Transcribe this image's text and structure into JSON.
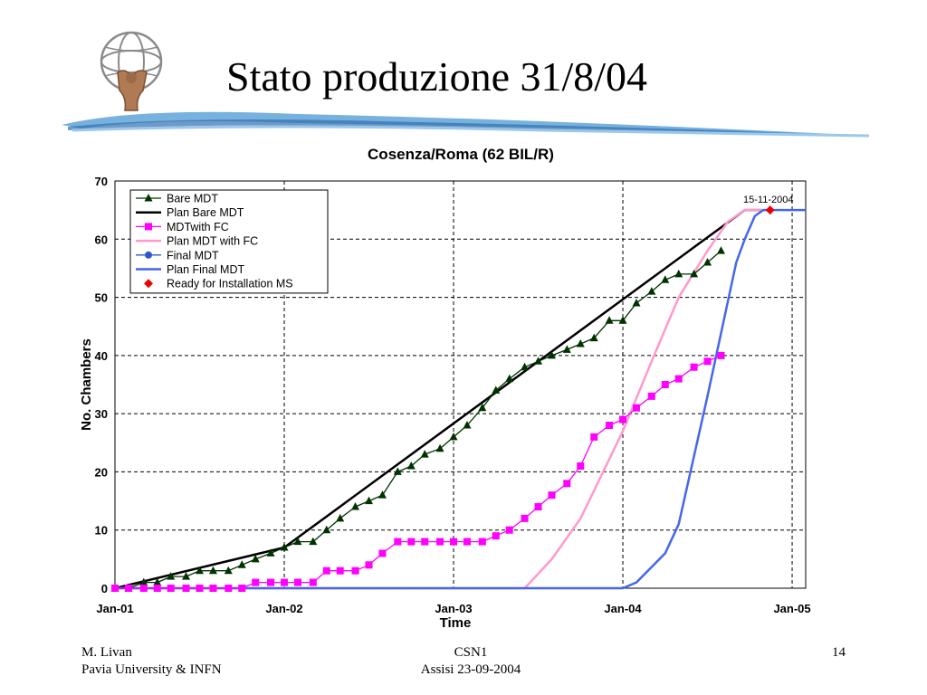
{
  "slide": {
    "title": "Stato produzione 31/8/04",
    "footer_left_line1": "M. Livan",
    "footer_left_line2": "Pavia University & INFN",
    "footer_center_line1": "CSN1",
    "footer_center_line2": "Assisi 23-09-2004",
    "page_number": "14"
  },
  "chart_data": {
    "type": "line",
    "title": "Cosenza/Roma (62 BIL/R)",
    "xlabel": "Time",
    "ylabel": "No. Chambers",
    "x_unit": "years (2001.0 = Jan-01)",
    "xlim": [
      2001.0,
      2005.08
    ],
    "ylim": [
      0,
      70
    ],
    "x_ticks": [
      {
        "value": 2001.0,
        "label": "Jan-01"
      },
      {
        "value": 2002.0,
        "label": "Jan-02"
      },
      {
        "value": 2003.0,
        "label": "Jan-03"
      },
      {
        "value": 2004.0,
        "label": "Jan-04"
      },
      {
        "value": 2005.0,
        "label": "Jan-05"
      }
    ],
    "y_ticks": [
      0,
      10,
      20,
      30,
      40,
      50,
      60,
      70
    ],
    "grid": true,
    "legend_position": "top-left",
    "annotation": {
      "text": "15-11-2004",
      "x": 2004.87,
      "y": 65
    },
    "series": [
      {
        "name": "Bare MDT",
        "color": "#003300",
        "marker": "triangle",
        "line": true,
        "points": [
          [
            2001.0,
            0
          ],
          [
            2001.08,
            0
          ],
          [
            2001.17,
            1
          ],
          [
            2001.25,
            1
          ],
          [
            2001.33,
            2
          ],
          [
            2001.42,
            2
          ],
          [
            2001.5,
            3
          ],
          [
            2001.58,
            3
          ],
          [
            2001.67,
            3
          ],
          [
            2001.75,
            4
          ],
          [
            2001.83,
            5
          ],
          [
            2001.92,
            6
          ],
          [
            2002.0,
            7
          ],
          [
            2002.08,
            8
          ],
          [
            2002.17,
            8
          ],
          [
            2002.25,
            10
          ],
          [
            2002.33,
            12
          ],
          [
            2002.42,
            14
          ],
          [
            2002.5,
            15
          ],
          [
            2002.58,
            16
          ],
          [
            2002.67,
            20
          ],
          [
            2002.75,
            21
          ],
          [
            2002.83,
            23
          ],
          [
            2002.92,
            24
          ],
          [
            2003.0,
            26
          ],
          [
            2003.08,
            28
          ],
          [
            2003.17,
            31
          ],
          [
            2003.25,
            34
          ],
          [
            2003.33,
            36
          ],
          [
            2003.42,
            38
          ],
          [
            2003.5,
            39
          ],
          [
            2003.58,
            40
          ],
          [
            2003.67,
            41
          ],
          [
            2003.75,
            42
          ],
          [
            2003.83,
            43
          ],
          [
            2003.92,
            46
          ],
          [
            2004.0,
            46
          ],
          [
            2004.08,
            49
          ],
          [
            2004.17,
            51
          ],
          [
            2004.25,
            53
          ],
          [
            2004.33,
            54
          ],
          [
            2004.42,
            54
          ],
          [
            2004.5,
            56
          ],
          [
            2004.58,
            58
          ]
        ]
      },
      {
        "name": "Plan Bare MDT",
        "color": "#000000",
        "marker": "none",
        "line": true,
        "points": [
          [
            2001.0,
            0
          ],
          [
            2002.0,
            7
          ],
          [
            2004.72,
            65
          ],
          [
            2004.82,
            65
          ]
        ]
      },
      {
        "name": "MDTwith FC",
        "color": "#ff00ff",
        "marker": "square",
        "line": true,
        "points": [
          [
            2001.0,
            0
          ],
          [
            2001.08,
            0
          ],
          [
            2001.17,
            0
          ],
          [
            2001.25,
            0
          ],
          [
            2001.33,
            0
          ],
          [
            2001.42,
            0
          ],
          [
            2001.5,
            0
          ],
          [
            2001.58,
            0
          ],
          [
            2001.67,
            0
          ],
          [
            2001.75,
            0
          ],
          [
            2001.83,
            1
          ],
          [
            2001.92,
            1
          ],
          [
            2002.0,
            1
          ],
          [
            2002.08,
            1
          ],
          [
            2002.17,
            1
          ],
          [
            2002.25,
            3
          ],
          [
            2002.33,
            3
          ],
          [
            2002.42,
            3
          ],
          [
            2002.5,
            4
          ],
          [
            2002.58,
            6
          ],
          [
            2002.67,
            8
          ],
          [
            2002.75,
            8
          ],
          [
            2002.83,
            8
          ],
          [
            2002.92,
            8
          ],
          [
            2003.0,
            8
          ],
          [
            2003.08,
            8
          ],
          [
            2003.17,
            8
          ],
          [
            2003.25,
            9
          ],
          [
            2003.33,
            10
          ],
          [
            2003.42,
            12
          ],
          [
            2003.5,
            14
          ],
          [
            2003.58,
            16
          ],
          [
            2003.67,
            18
          ],
          [
            2003.75,
            21
          ],
          [
            2003.83,
            26
          ],
          [
            2003.92,
            28
          ],
          [
            2004.0,
            29
          ],
          [
            2004.08,
            31
          ],
          [
            2004.17,
            33
          ],
          [
            2004.25,
            35
          ],
          [
            2004.33,
            36
          ],
          [
            2004.42,
            38
          ],
          [
            2004.5,
            39
          ],
          [
            2004.58,
            40
          ]
        ]
      },
      {
        "name": "Plan MDT with FC",
        "color": "#ff99cc",
        "marker": "none",
        "line": true,
        "points": [
          [
            2001.0,
            0
          ],
          [
            2003.42,
            0
          ],
          [
            2003.58,
            5
          ],
          [
            2003.75,
            12
          ],
          [
            2004.0,
            27
          ],
          [
            2004.17,
            39
          ],
          [
            2004.33,
            50
          ],
          [
            2004.5,
            58
          ],
          [
            2004.62,
            63
          ],
          [
            2004.72,
            65
          ],
          [
            2004.87,
            65
          ]
        ]
      },
      {
        "name": "Final MDT",
        "color": "#3355cc",
        "marker": "circle",
        "line": true,
        "points": []
      },
      {
        "name": "Plan Final MDT",
        "color": "#4466ee",
        "marker": "none",
        "line": true,
        "points": [
          [
            2001.0,
            0
          ],
          [
            2004.0,
            0
          ],
          [
            2004.08,
            1
          ],
          [
            2004.25,
            6
          ],
          [
            2004.33,
            11
          ],
          [
            2004.5,
            33
          ],
          [
            2004.67,
            56
          ],
          [
            2004.72,
            60
          ],
          [
            2004.78,
            64
          ],
          [
            2004.83,
            65
          ],
          [
            2005.08,
            65
          ]
        ]
      },
      {
        "name": "Ready for Installation MS",
        "color": "#ee0000",
        "marker": "diamond",
        "line": false,
        "points": [
          [
            2004.87,
            65
          ]
        ]
      }
    ]
  }
}
